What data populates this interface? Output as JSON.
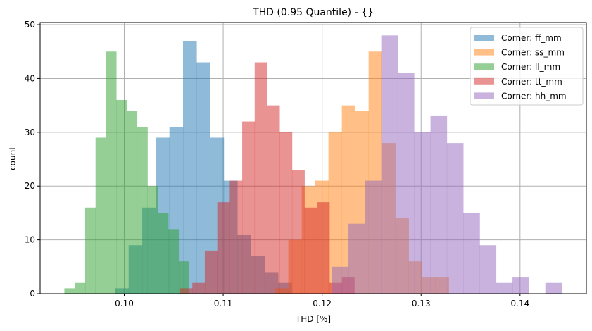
{
  "chart_data": {
    "type": "bar",
    "subtype": "overlapping-histogram",
    "title": "THD (0.95 Quantile) - {}",
    "xlabel": "THD [%]",
    "ylabel": "count",
    "xlim": [
      0.0915,
      0.1467
    ],
    "ylim": [
      0,
      50.4
    ],
    "xticks": [
      0.1,
      0.11,
      0.12,
      0.13,
      0.14
    ],
    "xtick_labels": [
      "0.10",
      "0.11",
      "0.12",
      "0.13",
      "0.14"
    ],
    "yticks": [
      0,
      10,
      20,
      30,
      40,
      50
    ],
    "ytick_labels": [
      "0",
      "10",
      "20",
      "30",
      "40",
      "50"
    ],
    "grid": true,
    "legend_position": "upper right",
    "alpha": 0.5,
    "series": [
      {
        "name": "Corner: ff_mm",
        "color": "#1f77b4",
        "bin_start": 0.09907,
        "bin_width": 0.001374,
        "values": [
          1,
          9,
          16,
          29,
          31,
          47,
          43,
          29,
          21,
          11,
          7,
          4,
          2
        ]
      },
      {
        "name": "Corner: ss_mm",
        "color": "#ff7f0e",
        "bin_start": 0.11523,
        "bin_width": 0.001352,
        "values": [
          1,
          10,
          20,
          21,
          30,
          35,
          34,
          45,
          28,
          14,
          6,
          3,
          3
        ]
      },
      {
        "name": "Corner: ll_mm",
        "color": "#2ca02c",
        "bin_start": 0.09395,
        "bin_width": 0.00105,
        "values": [
          1,
          2,
          16,
          29,
          45,
          36,
          34,
          31,
          20,
          15,
          12,
          6
        ]
      },
      {
        "name": "Corner: tt_mm",
        "color": "#d62728",
        "bin_start": 0.10562,
        "bin_width": 0.00126,
        "values": [
          1,
          2,
          8,
          17,
          21,
          32,
          43,
          35,
          30,
          23,
          16,
          17,
          2,
          3
        ]
      },
      {
        "name": "Corner: hh_mm",
        "color": "#9467bd",
        "bin_start": 0.121,
        "bin_width": 0.001658,
        "values": [
          5,
          13,
          21,
          48,
          41,
          30,
          33,
          28,
          15,
          9,
          2,
          3,
          0,
          2
        ]
      }
    ]
  }
}
